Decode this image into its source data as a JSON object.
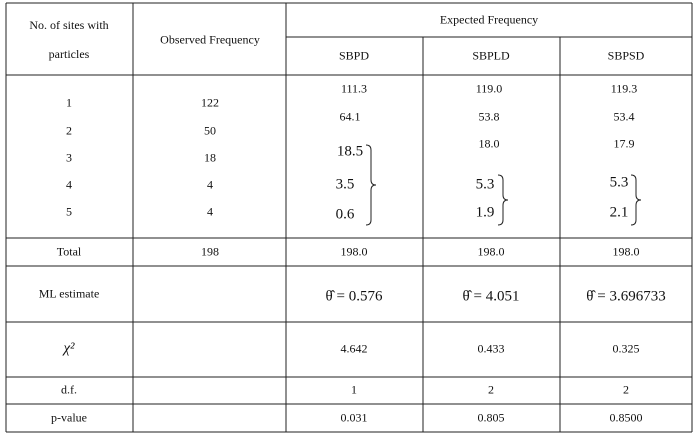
{
  "table": {
    "header": {
      "sites": "No. of sites with particles",
      "observed": "Observed Frequency",
      "expected": "Expected Frequency",
      "models": [
        "SBPD",
        "SBPLD",
        "SBPSD"
      ]
    },
    "counts": {
      "sites": [
        "1",
        "2",
        "3",
        "4",
        "5"
      ],
      "observed": [
        "122",
        "50",
        "18",
        "4",
        "4"
      ],
      "expected": [
        [
          "111.3",
          "64.1",
          "18.5",
          "3.5",
          "0.6"
        ],
        [
          "119.0",
          "53.8",
          "18.0",
          "5.3",
          "1.9"
        ],
        [
          "119.3",
          "53.4",
          "17.9",
          "5.3",
          "2.1"
        ]
      ]
    },
    "total": {
      "label": "Total",
      "observed": "198",
      "expected": [
        "198.0",
        "198.0",
        "198.0"
      ]
    },
    "ml_estimate": {
      "label": "ML estimate",
      "expected": [
        "θ̂ = 0.576",
        "θ̂ = 4.051",
        "θ̂ = 3.696733"
      ]
    },
    "chi_square": {
      "label": "χ²",
      "expected": [
        "4.642",
        "0.433",
        "0.325"
      ]
    },
    "df": {
      "label": "d.f.",
      "expected": [
        "1",
        "2",
        "2"
      ]
    },
    "p_value": {
      "label": "p-value",
      "expected": [
        "0.031",
        "0.805",
        "0.8500"
      ]
    }
  }
}
